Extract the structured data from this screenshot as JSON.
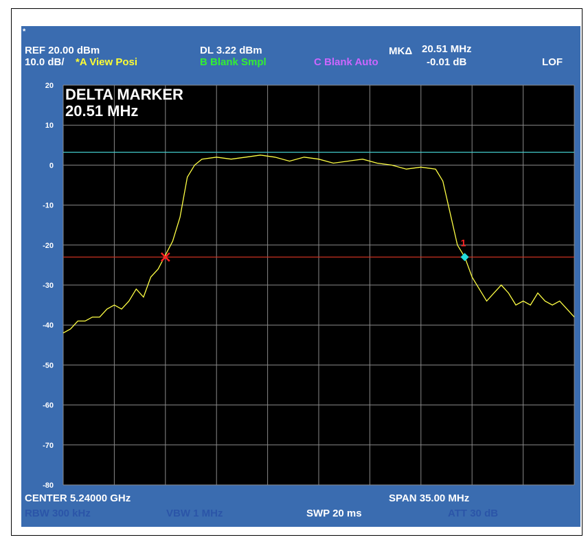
{
  "header": {
    "star": "*",
    "ref": "REF  20.00 dBm",
    "scale": "10.0 dB/",
    "trace_a": "*A View Posi",
    "dl": "DL   3.22 dBm",
    "trace_b": "B Blank Smpl",
    "trace_c": "C Blank Auto",
    "mk_label": "MKΔ",
    "mk_freq": "20.51 MHz",
    "mk_amp": "-0.01 dB",
    "lof": "LOF"
  },
  "annotation": {
    "line1": "DELTA MARKER",
    "line2": "20.51 MHz"
  },
  "footer": {
    "center": "CENTER 5.24000 GHz",
    "span": "SPAN  35.00 MHz",
    "rbw": "RBW  300 kHz",
    "vbw": "VBW  1 MHz",
    "swp": "SWP  20 ms",
    "att": "ATT  30 dB"
  },
  "colors": {
    "screen_bg": "#3a6cb0",
    "plot_bg": "#000000",
    "grid": "#8a8a8a",
    "trace": "#ffff44",
    "display_line": "#44cccc",
    "reference_line": "#cc3322",
    "marker_ref": "#ff2222",
    "marker_delta": "#22dddd"
  },
  "chart_data": {
    "type": "line",
    "xlim": [
      5222.5,
      5257.5
    ],
    "ylim": [
      -80,
      20
    ],
    "yticks": [
      "20",
      "10",
      "0",
      "-10",
      "-20",
      "-30",
      "-40",
      "-50",
      "-60",
      "-70",
      "-80"
    ],
    "display_line_dbm": 3.22,
    "reference_line_dbm": -23,
    "marker_ref": {
      "x": 5229.5,
      "y": -23,
      "symbol": "x"
    },
    "marker_delta": {
      "x": 5250.0,
      "y": -23,
      "label": "1"
    },
    "series": [
      {
        "x_mhz": [
          5222.5,
          5223.0,
          5223.5,
          5224.0,
          5224.5,
          5225.0,
          5225.5,
          5226.0,
          5226.5,
          5227.0,
          5227.5,
          5228.0,
          5228.5,
          5229.0,
          5229.5,
          5230.0,
          5230.5,
          5231.0,
          5231.5,
          5232.0,
          5233.0,
          5234.0,
          5235.0,
          5236.0,
          5237.0,
          5238.0,
          5239.0,
          5240.0,
          5241.0,
          5242.0,
          5243.0,
          5244.0,
          5245.0,
          5246.0,
          5247.0,
          5248.0,
          5248.5,
          5249.0,
          5249.5,
          5250.0,
          5250.5,
          5251.0,
          5251.5,
          5252.0,
          5252.5,
          5253.0,
          5253.5,
          5254.0,
          5254.5,
          5255.0,
          5255.5,
          5256.0,
          5256.5,
          5257.0,
          5257.5
        ],
        "y_dbm": [
          -42,
          -41,
          -39,
          -39,
          -38,
          -38,
          -36,
          -35,
          -36,
          -34,
          -31,
          -33,
          -28,
          -26,
          -22.5,
          -19,
          -13,
          -3,
          0,
          1.5,
          2,
          1.5,
          2,
          2.5,
          2,
          1,
          2,
          1.5,
          0.5,
          1,
          1.5,
          0.5,
          0,
          -1,
          -0.5,
          -1,
          -4,
          -12,
          -20,
          -23,
          -28,
          -31,
          -34,
          -32,
          -30,
          -32,
          -35,
          -34,
          -35,
          -32,
          -34,
          -35,
          -34,
          -36,
          -38
        ]
      }
    ]
  }
}
